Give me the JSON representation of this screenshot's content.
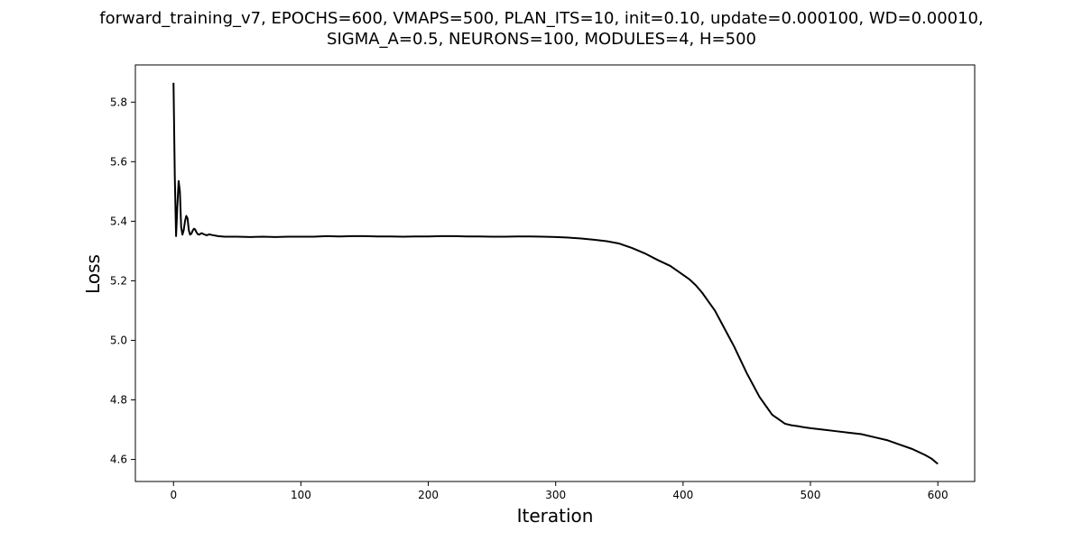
{
  "chart_data": {
    "type": "line",
    "title_lines": [
      "forward_training_v7, EPOCHS=600, VMAPS=500, PLAN_ITS=10, init=0.10, update=0.000100, WD=0.00010,",
      "SIGMA_A=0.5, NEURONS=100, MODULES=4, H=500"
    ],
    "xlabel": "Iteration",
    "ylabel": "Loss",
    "xlim": [
      -29.95,
      628.95
    ],
    "ylim": [
      4.526,
      5.925
    ],
    "x_ticks": [
      0,
      100,
      200,
      300,
      400,
      500,
      600
    ],
    "y_ticks": [
      4.6,
      4.8,
      5.0,
      5.2,
      5.4,
      5.6,
      5.8
    ],
    "y_tick_labels": [
      "4.6",
      "4.8",
      "5.0",
      "5.2",
      "5.4",
      "5.6",
      "5.8"
    ],
    "grid": false,
    "line_color": "#000000",
    "x": [
      0,
      1,
      2,
      3,
      4,
      5,
      6,
      7,
      8,
      9,
      10,
      11,
      12,
      13,
      14,
      15,
      16,
      17,
      18,
      19,
      20,
      22,
      24,
      26,
      28,
      30,
      35,
      40,
      50,
      60,
      70,
      80,
      90,
      100,
      110,
      120,
      130,
      140,
      150,
      160,
      170,
      180,
      190,
      200,
      210,
      220,
      230,
      240,
      250,
      260,
      270,
      280,
      290,
      300,
      310,
      320,
      330,
      340,
      350,
      360,
      370,
      380,
      390,
      400,
      405,
      410,
      415,
      420,
      425,
      430,
      435,
      440,
      445,
      450,
      455,
      460,
      465,
      470,
      475,
      480,
      485,
      490,
      495,
      500,
      510,
      520,
      530,
      540,
      550,
      560,
      570,
      580,
      590,
      595,
      600
    ],
    "y": [
      5.865,
      5.55,
      5.35,
      5.45,
      5.535,
      5.5,
      5.38,
      5.355,
      5.37,
      5.4,
      5.418,
      5.41,
      5.37,
      5.355,
      5.358,
      5.368,
      5.375,
      5.372,
      5.363,
      5.357,
      5.355,
      5.36,
      5.356,
      5.353,
      5.356,
      5.354,
      5.35,
      5.348,
      5.348,
      5.347,
      5.348,
      5.347,
      5.348,
      5.348,
      5.348,
      5.35,
      5.349,
      5.35,
      5.35,
      5.349,
      5.349,
      5.348,
      5.349,
      5.349,
      5.35,
      5.35,
      5.349,
      5.349,
      5.348,
      5.348,
      5.349,
      5.349,
      5.348,
      5.347,
      5.345,
      5.342,
      5.338,
      5.333,
      5.325,
      5.31,
      5.292,
      5.27,
      5.25,
      5.22,
      5.205,
      5.185,
      5.16,
      5.13,
      5.1,
      5.06,
      5.02,
      4.98,
      4.935,
      4.89,
      4.85,
      4.81,
      4.78,
      4.75,
      4.735,
      4.72,
      4.715,
      4.712,
      4.708,
      4.705,
      4.7,
      4.695,
      4.69,
      4.685,
      4.675,
      4.665,
      4.65,
      4.635,
      4.615,
      4.603,
      4.585
    ]
  }
}
